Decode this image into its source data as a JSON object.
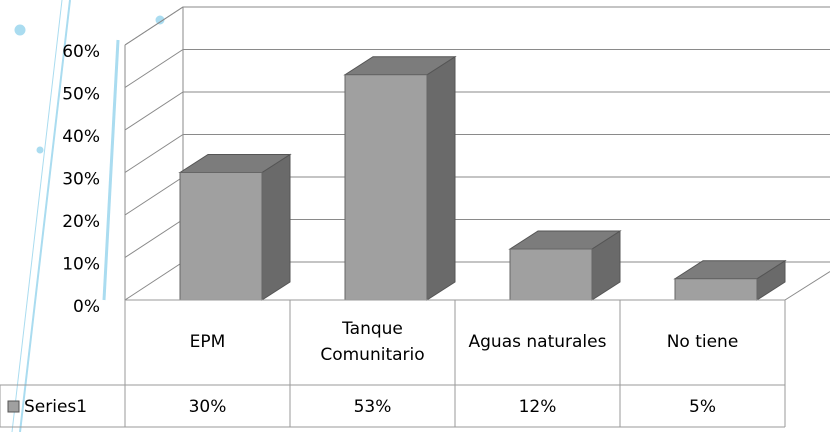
{
  "chart_data": {
    "type": "bar3d",
    "categories": [
      "EPM",
      "Tanque Comunitario",
      "Aguas naturales",
      "No tiene"
    ],
    "series": [
      {
        "name": "Series1",
        "color": "#a0a0a0",
        "values": [
          30,
          53,
          12,
          5
        ],
        "value_labels": [
          "30%",
          "53%",
          "12%",
          "5%"
        ]
      }
    ],
    "ylim": [
      0,
      60
    ],
    "yticks": [
      {
        "value": 0,
        "label": "0%"
      },
      {
        "value": 10,
        "label": "10%"
      },
      {
        "value": 20,
        "label": "20%"
      },
      {
        "value": 30,
        "label": "30%"
      },
      {
        "value": 40,
        "label": "40%"
      },
      {
        "value": 50,
        "label": "50%"
      },
      {
        "value": 60,
        "label": "60%"
      }
    ],
    "grid": true
  }
}
